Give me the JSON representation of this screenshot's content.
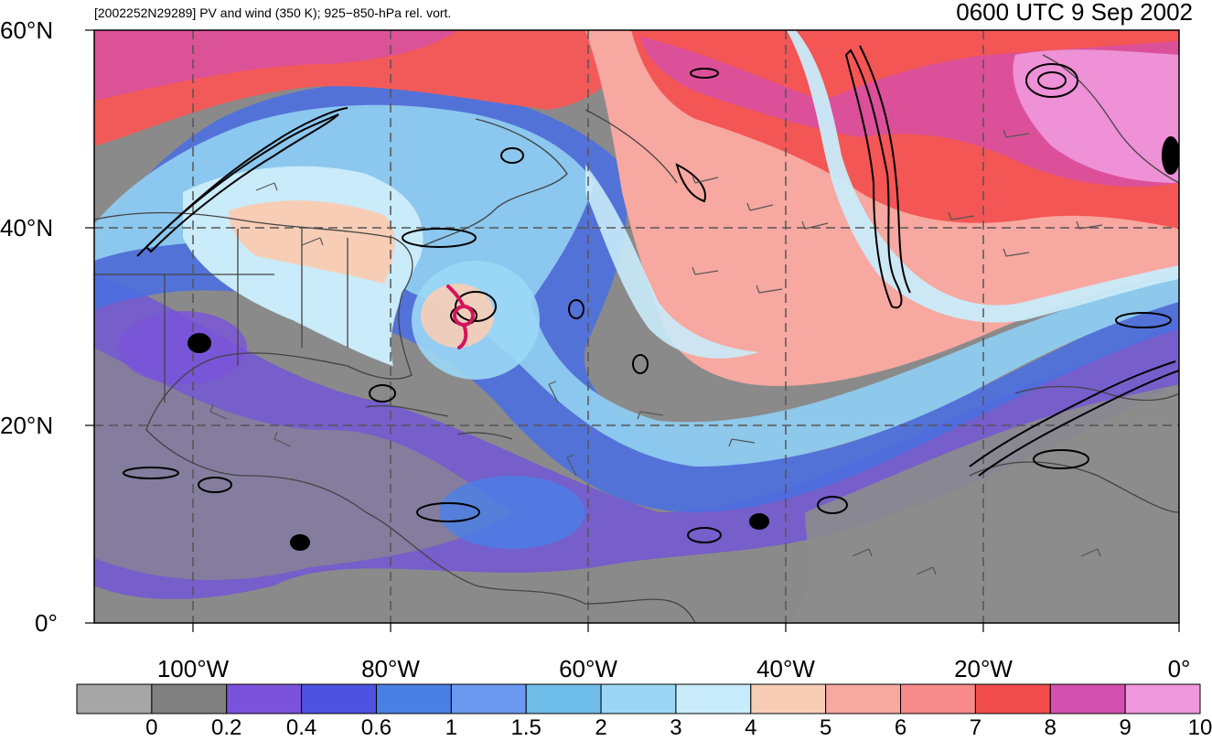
{
  "header": {
    "subtitle": "[2002252N29289] PV and wind (350 K); 925−850-hPa rel. vort.",
    "datetime": "0600 UTC 9 Sep 2002"
  },
  "map": {
    "lat_labels": [
      "60°N",
      "40°N",
      "20°N",
      "0°"
    ],
    "lon_labels": [
      "100°W",
      "80°W",
      "60°W",
      "40°W",
      "20°W",
      "0°"
    ],
    "storm_symbol": "hurricane-icon",
    "storm_color": "#d4145a"
  },
  "colorbar": {
    "labels": [
      "0",
      "0.2",
      "0.4",
      "0.6",
      "1",
      "1.5",
      "2",
      "3",
      "4",
      "5",
      "6",
      "7",
      "8",
      "9",
      "10"
    ],
    "colors": [
      "#a6a6a6",
      "#808080",
      "#7b52db",
      "#4d52e0",
      "#4a7fe6",
      "#6c98f0",
      "#6fbde9",
      "#9bd7f5",
      "#c8ecfb",
      "#f8cdb6",
      "#f7a8a0",
      "#f78a8a",
      "#f24d4d",
      "#d34fb0",
      "#ef98dd"
    ]
  }
}
